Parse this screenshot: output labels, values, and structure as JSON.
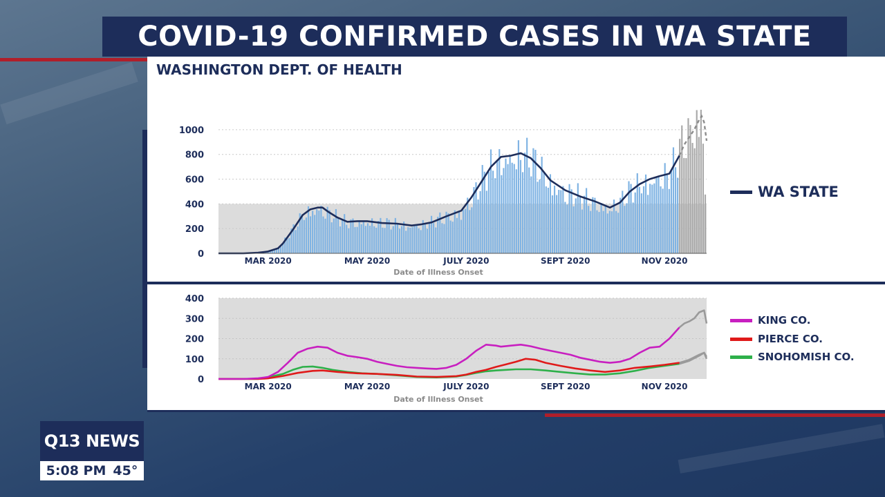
{
  "header": {
    "title": "COVID-19  CONFIRMED CASES IN WA STATE",
    "source": "WASHINGTON DEPT. OF HEALTH"
  },
  "colors": {
    "navy": "#1d2d5a",
    "bar_blue": "#7fb3e3",
    "bar_gray": "#a9a9a9",
    "king": "#c81fc0",
    "pierce": "#e01a1a",
    "snohomish": "#2eb04a",
    "accent_red": "#b01e2a"
  },
  "chart_data": [
    {
      "type": "bar",
      "xlabel": "Date of Illness Onset",
      "ylabel": "",
      "ylim": [
        0,
        1100
      ],
      "yticks": [
        "0",
        "200",
        "400",
        "600",
        "800",
        "1000"
      ],
      "xticks": [
        "MAR 2020",
        "MAY 2020",
        "JULY 2020",
        "SEPT 2020",
        "NOV 2020"
      ],
      "xtick_months": [
        2,
        4,
        6,
        8,
        10
      ],
      "x_month_range": [
        1.0,
        10.85
      ],
      "shaded_band_max": 400,
      "incomplete_data_from_month": 10.3,
      "series": [
        {
          "name": "WA STATE",
          "style": "line",
          "months": [
            1.0,
            1.5,
            1.8,
            2.0,
            2.2,
            2.3,
            2.5,
            2.7,
            2.85,
            3.0,
            3.1,
            3.2,
            3.4,
            3.6,
            3.8,
            4.0,
            4.3,
            4.6,
            4.9,
            5.1,
            5.3,
            5.6,
            5.9,
            6.1,
            6.3,
            6.5,
            6.7,
            6.9,
            7.1,
            7.3,
            7.5,
            7.7,
            8.0,
            8.3,
            8.6,
            8.9,
            9.1,
            9.3,
            9.5,
            9.7,
            9.9,
            10.1,
            10.3
          ],
          "values": [
            0,
            0,
            5,
            15,
            40,
            80,
            190,
            310,
            355,
            370,
            370,
            340,
            290,
            255,
            260,
            260,
            245,
            240,
            225,
            235,
            250,
            300,
            345,
            450,
            575,
            700,
            780,
            790,
            810,
            770,
            690,
            590,
            510,
            460,
            420,
            370,
            410,
            500,
            560,
            600,
            625,
            645,
            790
          ]
        },
        {
          "name": "WA STATE (incomplete)",
          "style": "dashed",
          "months": [
            10.3,
            10.4,
            10.5,
            10.6,
            10.7,
            10.75,
            10.8,
            10.85
          ],
          "values": [
            790,
            880,
            940,
            1000,
            1080,
            1110,
            1060,
            910
          ]
        }
      ]
    },
    {
      "type": "line",
      "xlabel": "Date of Illness Onset",
      "ylabel": "",
      "ylim": [
        0,
        400
      ],
      "yticks": [
        "0",
        "100",
        "200",
        "300",
        "400"
      ],
      "xticks": [
        "MAR 2020",
        "MAY 2020",
        "JULY 2020",
        "SEPT 2020",
        "NOV 2020"
      ],
      "series": [
        {
          "name": "KING CO.",
          "months": [
            1.0,
            1.5,
            1.8,
            2.0,
            2.2,
            2.4,
            2.6,
            2.8,
            3.0,
            3.2,
            3.4,
            3.6,
            3.8,
            4.0,
            4.2,
            4.4,
            4.6,
            4.8,
            5.0,
            5.2,
            5.4,
            5.6,
            5.8,
            6.0,
            6.2,
            6.4,
            6.6,
            6.7,
            6.9,
            7.1,
            7.3,
            7.5,
            7.7,
            7.9,
            8.1,
            8.3,
            8.5,
            8.7,
            8.9,
            9.1,
            9.3,
            9.5,
            9.7,
            9.9,
            10.1,
            10.3
          ],
          "values": [
            0,
            0,
            3,
            10,
            35,
            80,
            130,
            150,
            160,
            155,
            130,
            115,
            108,
            100,
            85,
            75,
            65,
            58,
            55,
            52,
            50,
            55,
            70,
            100,
            140,
            170,
            165,
            160,
            165,
            170,
            162,
            150,
            140,
            130,
            120,
            105,
            95,
            85,
            80,
            85,
            100,
            130,
            155,
            160,
            200,
            255
          ]
        },
        {
          "name": "PIERCE CO.",
          "months": [
            1.0,
            1.8,
            2.0,
            2.3,
            2.6,
            2.9,
            3.1,
            3.4,
            3.8,
            4.2,
            4.6,
            5.0,
            5.4,
            5.8,
            6.0,
            6.2,
            6.4,
            6.6,
            6.8,
            7.0,
            7.2,
            7.4,
            7.6,
            7.9,
            8.2,
            8.5,
            8.8,
            9.1,
            9.4,
            9.7,
            10.0,
            10.3
          ],
          "values": [
            0,
            0,
            3,
            15,
            30,
            40,
            42,
            35,
            28,
            25,
            20,
            12,
            10,
            14,
            22,
            35,
            45,
            60,
            72,
            85,
            100,
            95,
            80,
            65,
            52,
            42,
            35,
            42,
            55,
            62,
            70,
            80
          ]
        },
        {
          "name": "SNOHOMISH CO.",
          "months": [
            1.0,
            1.8,
            2.0,
            2.3,
            2.5,
            2.7,
            2.9,
            3.1,
            3.3,
            3.6,
            3.9,
            4.2,
            4.6,
            5.0,
            5.4,
            5.8,
            6.0,
            6.2,
            6.4,
            6.6,
            6.8,
            7.0,
            7.3,
            7.6,
            7.9,
            8.2,
            8.5,
            8.8,
            9.1,
            9.4,
            9.7,
            10.0,
            10.3
          ],
          "values": [
            0,
            0,
            8,
            25,
            45,
            60,
            62,
            55,
            45,
            35,
            28,
            25,
            18,
            10,
            8,
            12,
            20,
            30,
            38,
            42,
            45,
            48,
            48,
            42,
            35,
            28,
            22,
            22,
            28,
            40,
            55,
            65,
            75
          ]
        },
        {
          "name": "KING CO. (incomplete)",
          "style": "gray",
          "months": [
            10.3,
            10.4,
            10.5,
            10.6,
            10.7,
            10.8,
            10.85
          ],
          "values": [
            255,
            275,
            285,
            300,
            330,
            340,
            275
          ]
        },
        {
          "name": "PIERCE CO. (incomplete)",
          "style": "gray",
          "months": [
            10.3,
            10.5,
            10.7,
            10.8,
            10.85
          ],
          "values": [
            80,
            95,
            120,
            130,
            110
          ]
        },
        {
          "name": "SNOHOMISH CO. (incomplete)",
          "style": "gray",
          "months": [
            10.3,
            10.5,
            10.7,
            10.8,
            10.85
          ],
          "values": [
            75,
            90,
            115,
            130,
            100
          ]
        }
      ]
    }
  ],
  "legend": {
    "wa_state": "WA STATE",
    "king": "KING CO.",
    "pierce": "PIERCE CO.",
    "snohomish": "SNOHOMISH CO."
  },
  "station": {
    "logo": "Q13 NEWS",
    "time": "5:08 PM",
    "temperature": "45°"
  }
}
